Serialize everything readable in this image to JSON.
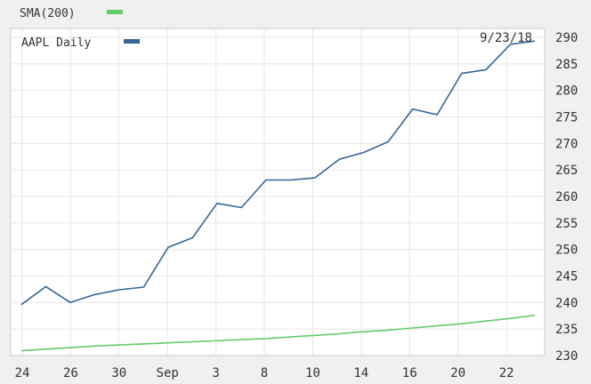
{
  "chart_data": {
    "type": "line",
    "title": "",
    "xlabel": "",
    "ylabel": "",
    "ylim": [
      230,
      290
    ],
    "y_ticks": [
      230,
      235,
      240,
      245,
      250,
      255,
      260,
      265,
      270,
      275,
      280,
      285,
      290
    ],
    "y_axis_position": "right",
    "grid": true,
    "x_ticks": [
      "24",
      "26",
      "30",
      "Sep",
      "3",
      "8",
      "10",
      "14",
      "16",
      "20",
      "22"
    ],
    "date_label": "9/23/18",
    "legend": [
      {
        "label": "SMA(200)",
        "color": "#66cc66",
        "placement": "top-left, above plot"
      },
      {
        "label": "AAPL Daily",
        "color": "#336699",
        "placement": "top-left, inside plot"
      }
    ],
    "series": [
      {
        "name": "AAPL Daily",
        "color": "#336699",
        "values": [
          239.6,
          243.0,
          240.0,
          241.5,
          242.4,
          242.9,
          250.4,
          252.2,
          258.7,
          257.9,
          263.1,
          263.1,
          263.5,
          267.0,
          268.3,
          270.3,
          276.5,
          275.4,
          283.2,
          283.9,
          288.7,
          289.3
        ]
      },
      {
        "name": "SMA(200)",
        "color": "#66cc66",
        "values": [
          230.9,
          231.2,
          231.5,
          231.8,
          232.0,
          232.2,
          232.4,
          232.6,
          232.8,
          233.0,
          233.2,
          233.5,
          233.8,
          234.1,
          234.5,
          234.8,
          235.2,
          235.6,
          236.0,
          236.5,
          237.0,
          237.6
        ]
      }
    ]
  }
}
